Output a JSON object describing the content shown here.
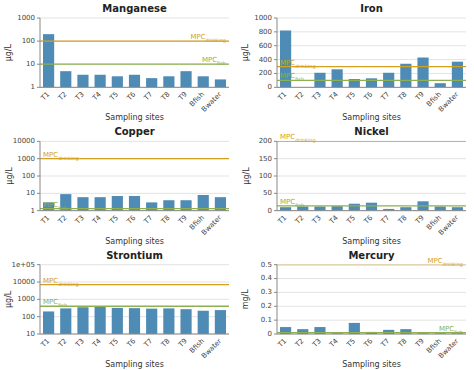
{
  "chart_data": [
    {
      "type": "bar",
      "title": "Manganese",
      "xlabel": "Sampling sites",
      "ylabel": "µg/L",
      "categories": [
        "T1",
        "T2",
        "T3",
        "T4",
        "T5",
        "T6",
        "T7",
        "T8",
        "T9",
        "Bfish",
        "Bwater"
      ],
      "values": [
        200,
        5,
        3.5,
        3.5,
        3,
        3.5,
        2.5,
        3,
        5,
        3,
        2.2
      ],
      "color": "#4e8bb5",
      "log": "y",
      "ylim": [
        1,
        1000
      ],
      "yticks": [
        1,
        10,
        100,
        1000
      ],
      "grid": true,
      "annotations": [
        {
          "text": "MPC",
          "subscript": "drinking",
          "value": 100,
          "color": "#d4a020",
          "position": "right"
        },
        {
          "text": "MPC",
          "subscript": "fish",
          "value": 10,
          "color": "#8db050",
          "position": "right"
        }
      ]
    },
    {
      "type": "bar",
      "title": "Iron",
      "xlabel": "Sampling sites",
      "ylabel": "µg/L",
      "categories": [
        "T1",
        "T2",
        "T3",
        "T4",
        "T5",
        "T6",
        "T7",
        "T8",
        "T9",
        "Bfish",
        "Bwater"
      ],
      "values": [
        820,
        0,
        210,
        260,
        120,
        130,
        210,
        340,
        430,
        60,
        370
      ],
      "color": "#4e8bb5",
      "ylim": [
        0,
        1000
      ],
      "yticks": [
        0,
        200,
        400,
        600,
        800,
        1000
      ],
      "grid": true,
      "annotations": [
        {
          "text": "MPC",
          "subscript": "drinking",
          "value": 300,
          "color": "#d4a020",
          "position": "left"
        },
        {
          "text": "MPC",
          "subscript": "fish",
          "value": 100,
          "color": "#8db050",
          "position": "left"
        }
      ]
    },
    {
      "type": "bar",
      "title": "Copper",
      "xlabel": "Sampling sites",
      "ylabel": "µg/L",
      "categories": [
        "T1",
        "T2",
        "T3",
        "T4",
        "T5",
        "T6",
        "T7",
        "T8",
        "T9",
        "Bfish",
        "Bwater"
      ],
      "values": [
        3,
        9,
        6,
        6,
        7,
        7,
        3,
        4,
        4,
        8,
        6
      ],
      "color": "#4e8bb5",
      "log": "y",
      "ylim": [
        1,
        10000
      ],
      "yticks": [
        1,
        10,
        100,
        1000,
        10000
      ],
      "grid": true,
      "annotations": [
        {
          "text": "MPC",
          "subscript": "drinking",
          "value": 1000,
          "color": "#d4a020",
          "position": "left"
        },
        {
          "text": "MPC",
          "subscript": "fish",
          "value": 1.3,
          "color": "#8db050",
          "position": "left"
        }
      ]
    },
    {
      "type": "bar",
      "title": "Nickel",
      "xlabel": "Sampling sites",
      "ylabel": "µg/L",
      "categories": [
        "T1",
        "T2",
        "T3",
        "T4",
        "T5",
        "T6",
        "T7",
        "T8",
        "T9",
        "Bfish",
        "Bwater"
      ],
      "values": [
        10,
        12,
        12,
        13,
        20,
        23,
        5,
        10,
        27,
        12,
        10
      ],
      "color": "#4e8bb5",
      "ylim": [
        0,
        200
      ],
      "yticks": [
        0,
        50,
        100,
        150,
        200
      ],
      "grid": true,
      "annotations": [
        {
          "text": "MPC",
          "subscript": "drinking",
          "value": 200,
          "color": "#d4a020",
          "position": "left"
        },
        {
          "text": "MPC",
          "subscript": "fish",
          "value": 14,
          "color": "#8db050",
          "position": "left"
        }
      ]
    },
    {
      "type": "bar",
      "title": "Strontium",
      "xlabel": "Sampling sites",
      "ylabel": "µg/L",
      "categories": [
        "T1",
        "T2",
        "T3",
        "T4",
        "T5",
        "T6",
        "T7",
        "T8",
        "T9",
        "Bfish",
        "Bwater"
      ],
      "values": [
        200,
        300,
        350,
        370,
        320,
        310,
        290,
        300,
        270,
        220,
        240
      ],
      "color": "#4e8bb5",
      "log": "y",
      "ylim": [
        10,
        100000
      ],
      "yticks": [
        10,
        100,
        1000,
        10000,
        {
          "value": 100000,
          "label": "1e+05"
        }
      ],
      "grid": true,
      "annotations": [
        {
          "text": "MPC",
          "subscript": "drinking",
          "value": 7000,
          "color": "#d4a020",
          "position": "left"
        },
        {
          "text": "MPC",
          "subscript": "fish",
          "value": 400,
          "color": "#8db050",
          "position": "left"
        }
      ]
    },
    {
      "type": "bar",
      "title": "Mercury",
      "xlabel": "Sampling sites",
      "ylabel": "mg/L",
      "categories": [
        "T1",
        "T2",
        "T3",
        "T4",
        "T5",
        "T6",
        "T7",
        "T8",
        "T9",
        "Bfish",
        "Bwater"
      ],
      "values": [
        0.05,
        0.035,
        0.05,
        0.005,
        0.08,
        0.015,
        0.03,
        0.035,
        0.005,
        0.005,
        0.005
      ],
      "color": "#4e8bb5",
      "ylim": [
        0,
        0.5
      ],
      "yticks": [
        0,
        0.1,
        0.2,
        0.3,
        0.4,
        0.5
      ],
      "grid": true,
      "annotations": [
        {
          "text": "MPC",
          "subscript": "drinking",
          "value": 0.5,
          "color": "#d4a020",
          "position": "right"
        },
        {
          "text": "MPC",
          "subscript": "fish",
          "value": 0.01,
          "color": "#8db050",
          "position": "right"
        }
      ]
    }
  ]
}
